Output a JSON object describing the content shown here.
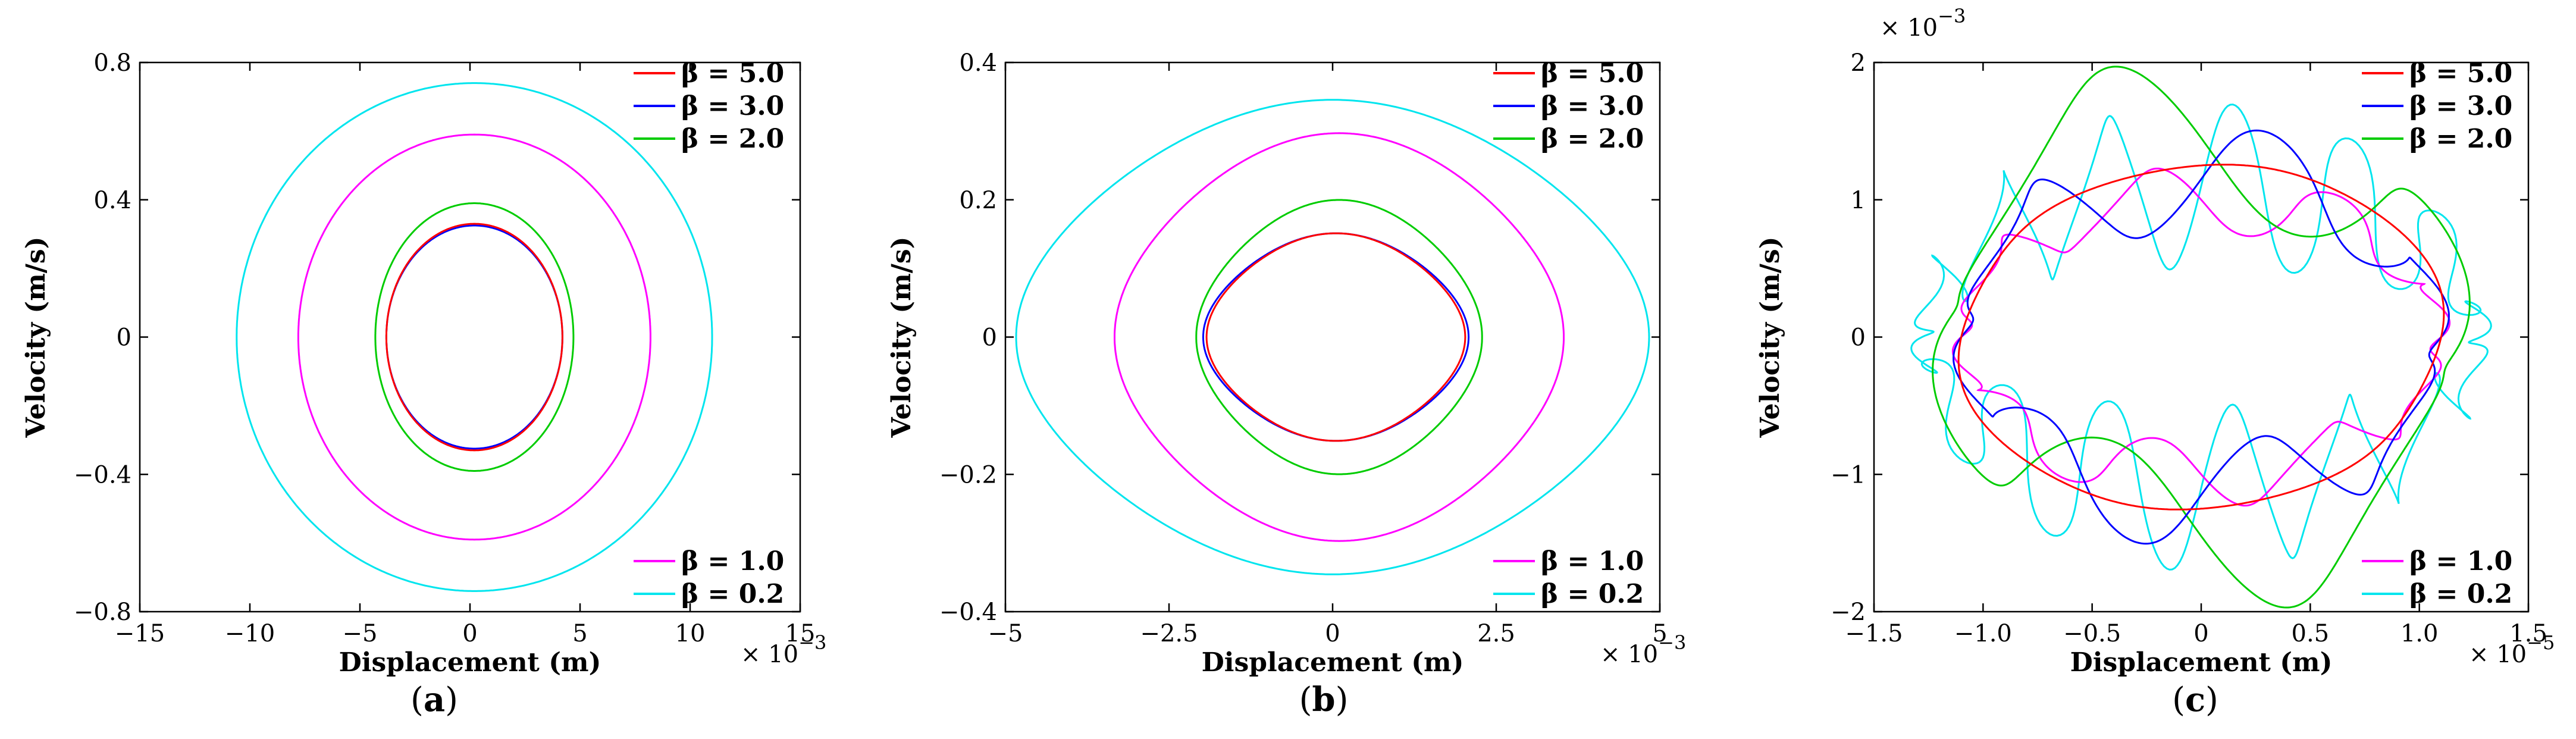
{
  "chart_data": [
    {
      "type": "line",
      "panel_label": "a",
      "xlabel": "Displacement (m)",
      "ylabel": "Velocity (m/s)",
      "x_scale_label": "× 10",
      "x_scale_exponent": "−3",
      "xlim": [
        -15,
        15
      ],
      "ylim": [
        -0.8,
        0.8
      ],
      "xticks": [
        -15,
        -10,
        -5,
        0,
        5,
        10,
        15
      ],
      "xtick_labels": [
        "−15",
        "−10",
        "−5",
        "0",
        "5",
        "10",
        "15"
      ],
      "yticks": [
        -0.8,
        -0.4,
        0,
        0.4,
        0.8
      ],
      "ytick_labels": [
        "−0.8",
        "−0.4",
        "0",
        "0.4",
        "0.8"
      ],
      "grid": false,
      "legend_top": [
        "β = 5.0",
        "β = 3.0",
        "β = 2.0"
      ],
      "legend_bottom": [
        "β = 1.0",
        "β = 0.2"
      ],
      "series": [
        {
          "name": "β = 5.0",
          "color": "#ff0000",
          "cx": 0.2,
          "cy": 0,
          "rx": 4.0,
          "ry": 0.33
        },
        {
          "name": "β = 3.0",
          "color": "#0000ff",
          "cx": 0.2,
          "cy": 0,
          "rx": 4.0,
          "ry": 0.325
        },
        {
          "name": "β = 2.0",
          "color": "#00cc00",
          "cx": 0.2,
          "cy": 0,
          "rx": 4.5,
          "ry": 0.39
        },
        {
          "name": "β = 1.0",
          "color": "#ff00ff",
          "cx": 0.2,
          "cy": 0,
          "rx": 8.0,
          "ry": 0.59
        },
        {
          "name": "β = 0.2",
          "color": "#00e5ee",
          "cx": 0.2,
          "cy": 0,
          "rx": 10.8,
          "ry": 0.74
        }
      ]
    },
    {
      "type": "line",
      "panel_label": "b",
      "xlabel": "Displacement (m)",
      "ylabel": "Velocity (m/s)",
      "x_scale_label": "× 10",
      "x_scale_exponent": "−3",
      "xlim": [
        -5,
        5
      ],
      "ylim": [
        -0.4,
        0.4
      ],
      "xticks": [
        -5,
        -2.5,
        0,
        2.5,
        5
      ],
      "xtick_labels": [
        "−5",
        "−2.5",
        "0",
        "2.5",
        "5"
      ],
      "yticks": [
        -0.4,
        -0.2,
        0,
        0.2,
        0.4
      ],
      "ytick_labels": [
        "−0.4",
        "−0.2",
        "0",
        "0.2",
        "0.4"
      ],
      "grid": false,
      "legend_top": [
        "β = 5.0",
        "β = 3.0",
        "β = 2.0"
      ],
      "legend_bottom": [
        "β = 1.0",
        "β = 0.2"
      ],
      "series": [
        {
          "name": "β = 5.0",
          "color": "#ff0000",
          "cx": 0.05,
          "cy": 0,
          "rx": 1.9,
          "ry": 0.14
        },
        {
          "name": "β = 3.0",
          "color": "#0000ff",
          "cx": 0.05,
          "cy": 0,
          "rx": 1.95,
          "ry": 0.14
        },
        {
          "name": "β = 2.0",
          "color": "#00cc00",
          "cx": 0.1,
          "cy": 0,
          "rx": 2.1,
          "ry": 0.185
        },
        {
          "name": "β = 1.0",
          "color": "#ff00ff",
          "cx": 0.1,
          "cy": 0,
          "rx": 3.3,
          "ry": 0.275
        },
        {
          "name": "β = 0.2",
          "color": "#00e5ee",
          "cx": 0.0,
          "cy": 0,
          "rx": 4.65,
          "ry": 0.32
        }
      ]
    },
    {
      "type": "line",
      "panel_label": "c",
      "xlabel": "Displacement (m)",
      "ylabel": "Velocity (m/s)",
      "x_scale_label": "× 10",
      "x_scale_exponent": "−5",
      "y_scale_label": "× 10",
      "y_scale_exponent": "−3",
      "xlim": [
        -1.5,
        1.5
      ],
      "ylim": [
        -2,
        2
      ],
      "xticks": [
        -1.5,
        -1,
        -0.5,
        0,
        0.5,
        1,
        1.5
      ],
      "xtick_labels": [
        "−1.5",
        "−1.0",
        "−0.5",
        "0",
        "0.5",
        "1.0",
        "1.5"
      ],
      "yticks": [
        -2,
        -1,
        0,
        1,
        2
      ],
      "ytick_labels": [
        "−2",
        "−1",
        "0",
        "1",
        "2"
      ],
      "grid": false,
      "legend_top": [
        "β = 5.0",
        "β = 3.0",
        "β = 2.0"
      ],
      "legend_bottom": [
        "β = 1.0",
        "β = 0.2"
      ],
      "series": [
        {
          "name": "β = 5.0",
          "color": "#ff0000",
          "rx": 1.1,
          "ry": 1.25,
          "wiggle_amp": 0.05,
          "wiggle_freq": 2
        },
        {
          "name": "β = 3.0",
          "color": "#0000ff",
          "rx": 1.1,
          "ry": 1.15,
          "wiggle_amp": 0.35,
          "wiggle_freq": 6
        },
        {
          "name": "β = 2.0",
          "color": "#00cc00",
          "rx": 1.2,
          "ry": 1.45,
          "wiggle_amp": 0.45,
          "wiggle_freq": 4
        },
        {
          "name": "β = 1.0",
          "color": "#ff00ff",
          "rx": 1.1,
          "ry": 1.0,
          "wiggle_amp": 0.25,
          "wiggle_freq": 8
        },
        {
          "name": "β = 0.2",
          "color": "#00e5ee",
          "rx": 1.28,
          "ry": 1.1,
          "wiggle_amp": 0.55,
          "wiggle_freq": 14
        }
      ]
    }
  ]
}
